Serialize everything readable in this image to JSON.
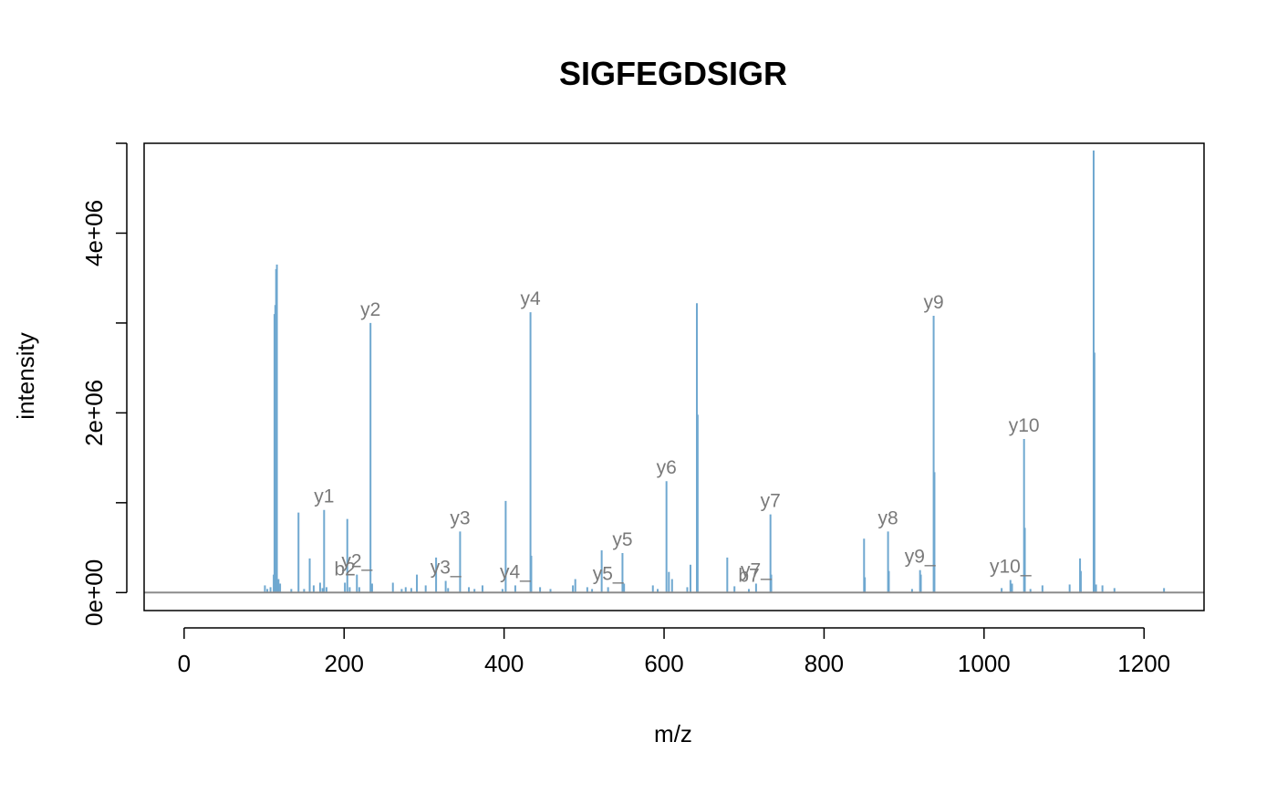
{
  "chart_data": {
    "type": "bar",
    "subtype": "mass-spectrum",
    "title": "SIGFEGDSIGR",
    "xlabel": "m/z",
    "ylabel": "intensity",
    "xlim": [
      -50,
      1275
    ],
    "ylim": [
      -200000,
      5000000
    ],
    "x_ticks": [
      0,
      200,
      400,
      600,
      800,
      1000,
      1200
    ],
    "x_tick_labels": [
      "0",
      "200",
      "400",
      "600",
      "800",
      "1000",
      "1200"
    ],
    "y_ticks": [
      0,
      1000000,
      2000000,
      3000000,
      4000000,
      5000000
    ],
    "y_tick_labels": [
      "0e+00",
      "",
      "2e+06",
      "",
      "4e+06",
      ""
    ],
    "grid": false,
    "legend": "none",
    "colors": {
      "peak": "#6fa8d0",
      "label": "#7a7a7a",
      "baseline": "#8c8c8c",
      "frame": "#000000"
    },
    "peaks": [
      {
        "x": 101,
        "y": 80000
      },
      {
        "x": 104,
        "y": 40000
      },
      {
        "x": 108,
        "y": 60000
      },
      {
        "x": 112,
        "y": 200000
      },
      {
        "x": 113,
        "y": 3100000
      },
      {
        "x": 114,
        "y": 3200000
      },
      {
        "x": 115,
        "y": 3600000
      },
      {
        "x": 116,
        "y": 3650000
      },
      {
        "x": 118,
        "y": 150000
      },
      {
        "x": 120,
        "y": 100000
      },
      {
        "x": 134,
        "y": 40000
      },
      {
        "x": 143,
        "y": 890000
      },
      {
        "x": 150,
        "y": 40000
      },
      {
        "x": 157,
        "y": 380000
      },
      {
        "x": 162,
        "y": 80000
      },
      {
        "x": 170,
        "y": 110000
      },
      {
        "x": 173,
        "y": 50000
      },
      {
        "x": 175,
        "y": 920000
      },
      {
        "x": 178,
        "y": 60000
      },
      {
        "x": 201,
        "y": 110000
      },
      {
        "x": 204,
        "y": 820000
      },
      {
        "x": 207,
        "y": 60000
      },
      {
        "x": 216,
        "y": 200000
      },
      {
        "x": 219,
        "y": 60000
      },
      {
        "x": 233,
        "y": 3000000
      },
      {
        "x": 235,
        "y": 100000
      },
      {
        "x": 261,
        "y": 110000
      },
      {
        "x": 272,
        "y": 40000
      },
      {
        "x": 277,
        "y": 60000
      },
      {
        "x": 284,
        "y": 50000
      },
      {
        "x": 291,
        "y": 200000
      },
      {
        "x": 302,
        "y": 80000
      },
      {
        "x": 315,
        "y": 390000
      },
      {
        "x": 327,
        "y": 130000
      },
      {
        "x": 330,
        "y": 50000
      },
      {
        "x": 345,
        "y": 680000
      },
      {
        "x": 356,
        "y": 60000
      },
      {
        "x": 363,
        "y": 40000
      },
      {
        "x": 373,
        "y": 80000
      },
      {
        "x": 398,
        "y": 40000
      },
      {
        "x": 402,
        "y": 1020000
      },
      {
        "x": 414,
        "y": 80000
      },
      {
        "x": 433,
        "y": 3120000
      },
      {
        "x": 434,
        "y": 410000
      },
      {
        "x": 445,
        "y": 60000
      },
      {
        "x": 458,
        "y": 40000
      },
      {
        "x": 486,
        "y": 80000
      },
      {
        "x": 489,
        "y": 150000
      },
      {
        "x": 504,
        "y": 60000
      },
      {
        "x": 510,
        "y": 40000
      },
      {
        "x": 522,
        "y": 470000
      },
      {
        "x": 530,
        "y": 60000
      },
      {
        "x": 548,
        "y": 440000
      },
      {
        "x": 550,
        "y": 100000
      },
      {
        "x": 586,
        "y": 80000
      },
      {
        "x": 592,
        "y": 40000
      },
      {
        "x": 603,
        "y": 1240000
      },
      {
        "x": 606,
        "y": 230000
      },
      {
        "x": 610,
        "y": 150000
      },
      {
        "x": 629,
        "y": 60000
      },
      {
        "x": 633,
        "y": 310000
      },
      {
        "x": 641,
        "y": 3220000
      },
      {
        "x": 642,
        "y": 1980000
      },
      {
        "x": 679,
        "y": 390000
      },
      {
        "x": 688,
        "y": 70000
      },
      {
        "x": 706,
        "y": 40000
      },
      {
        "x": 715,
        "y": 100000
      },
      {
        "x": 733,
        "y": 870000
      },
      {
        "x": 734,
        "y": 200000
      },
      {
        "x": 850,
        "y": 600000
      },
      {
        "x": 851,
        "y": 170000
      },
      {
        "x": 880,
        "y": 680000
      },
      {
        "x": 881,
        "y": 240000
      },
      {
        "x": 910,
        "y": 40000
      },
      {
        "x": 920,
        "y": 250000
      },
      {
        "x": 921,
        "y": 200000
      },
      {
        "x": 937,
        "y": 3080000
      },
      {
        "x": 938,
        "y": 1340000
      },
      {
        "x": 1022,
        "y": 50000
      },
      {
        "x": 1033,
        "y": 140000
      },
      {
        "x": 1035,
        "y": 100000
      },
      {
        "x": 1050,
        "y": 1710000
      },
      {
        "x": 1051,
        "y": 720000
      },
      {
        "x": 1058,
        "y": 40000
      },
      {
        "x": 1073,
        "y": 80000
      },
      {
        "x": 1107,
        "y": 90000
      },
      {
        "x": 1120,
        "y": 380000
      },
      {
        "x": 1121,
        "y": 240000
      },
      {
        "x": 1137,
        "y": 4920000
      },
      {
        "x": 1138,
        "y": 2670000
      },
      {
        "x": 1140,
        "y": 90000
      },
      {
        "x": 1148,
        "y": 80000
      },
      {
        "x": 1163,
        "y": 50000
      },
      {
        "x": 1225,
        "y": 50000
      }
    ],
    "annotations": [
      {
        "text": "y1",
        "x": 175,
        "y": 920000
      },
      {
        "text": "y2",
        "x": 233,
        "y": 3000000
      },
      {
        "text": "y2_",
        "x": 216,
        "y": 200000
      },
      {
        "text": "b2",
        "x": 201,
        "y": 110000
      },
      {
        "text": "y3",
        "x": 345,
        "y": 680000
      },
      {
        "text": "y3_",
        "x": 327,
        "y": 130000
      },
      {
        "text": "y4",
        "x": 433,
        "y": 3120000
      },
      {
        "text": "y4_",
        "x": 414,
        "y": 80000
      },
      {
        "text": "y5",
        "x": 548,
        "y": 440000
      },
      {
        "text": "y5_",
        "x": 530,
        "y": 60000
      },
      {
        "text": "y6",
        "x": 603,
        "y": 1240000
      },
      {
        "text": "y7",
        "x": 733,
        "y": 870000
      },
      {
        "text": "y7_",
        "x": 715,
        "y": 100000
      },
      {
        "text": "b7",
        "x": 706,
        "y": 40000
      },
      {
        "text": "y8",
        "x": 880,
        "y": 680000
      },
      {
        "text": "y9",
        "x": 937,
        "y": 3080000
      },
      {
        "text": "y9_",
        "x": 920,
        "y": 250000
      },
      {
        "text": "y10",
        "x": 1050,
        "y": 1710000
      },
      {
        "text": "y10_",
        "x": 1033,
        "y": 140000
      }
    ]
  }
}
